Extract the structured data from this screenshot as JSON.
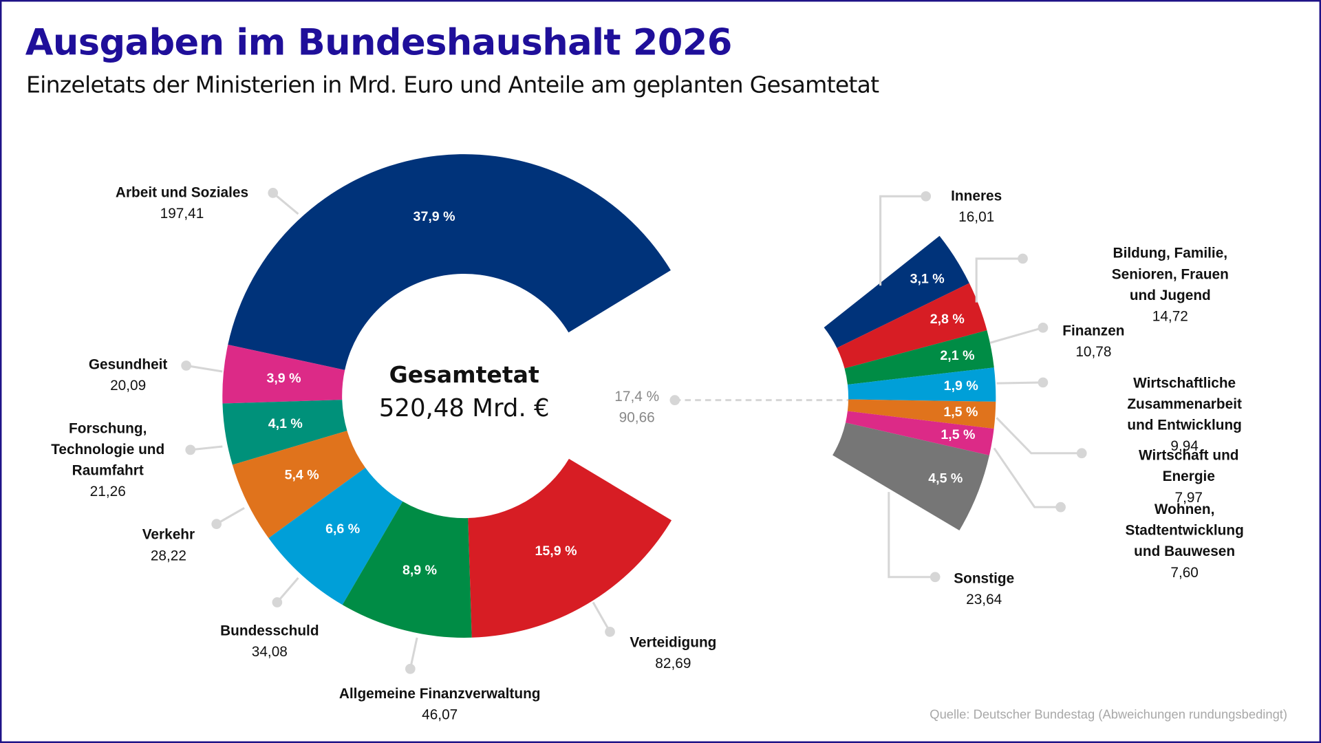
{
  "title": "Ausgaben im Bundeshaushalt 2026",
  "subtitle": "Einzeletats der Ministerien in Mrd. Euro und Anteile am geplanten Gesamtetat",
  "source": "Quelle: Deutscher Bundestag (Abweichungen rundungsbedingt)",
  "chart_data": {
    "type": "pie",
    "style": "donut with bar-of-pie breakout",
    "unit": "Mrd. Euro",
    "center": {
      "label": "Gesamtetat",
      "value": "520,48 Mrd. €"
    },
    "main": {
      "slices": [
        {
          "label": "Arbeit und Soziales",
          "value": "197,41",
          "pct_label": "37,9 %",
          "percent": 37.9,
          "color": "#00337a"
        },
        {
          "label": "Gesundheit",
          "value": "20,09",
          "pct_label": "3,9 %",
          "percent": 3.9,
          "color": "#dc2a87"
        },
        {
          "label": "Forschung,\nTechnologie und\nRaumfahrt",
          "value": "21,26",
          "pct_label": "4,1 %",
          "percent": 4.1,
          "color": "#00917a"
        },
        {
          "label": "Verkehr",
          "value": "28,22",
          "pct_label": "5,4 %",
          "percent": 5.4,
          "color": "#e0731c"
        },
        {
          "label": "Bundesschuld",
          "value": "34,08",
          "pct_label": "6,6 %",
          "percent": 6.6,
          "color": "#009fd8"
        },
        {
          "label": "Allgemeine Finanzverwaltung",
          "value": "46,07",
          "pct_label": "8,9 %",
          "percent": 8.9,
          "color": "#008c45"
        },
        {
          "label": "Verteidigung",
          "value": "82,69",
          "pct_label": "15,9 %",
          "percent": 15.9,
          "color": "#d71d24"
        }
      ],
      "other": {
        "value": "90,66",
        "pct_label": "17,4 %",
        "percent": 17.4
      }
    },
    "breakout": {
      "slices": [
        {
          "label": "Inneres",
          "value": "16,01",
          "pct_label": "3,1 %",
          "percent": 3.1,
          "color": "#00337a"
        },
        {
          "label": "Bildung, Familie, Senioren, Frauen\nund Jugend",
          "value": "14,72",
          "pct_label": "2,8 %",
          "percent": 2.8,
          "color": "#d71d24"
        },
        {
          "label": "Finanzen",
          "value": "10,78",
          "pct_label": "2,1 %",
          "percent": 2.1,
          "color": "#008c45"
        },
        {
          "label": "Wirtschaftliche Zusammenarbeit\nund Entwicklung",
          "value": "9,94",
          "pct_label": "1,9 %",
          "percent": 1.9,
          "color": "#009fd8"
        },
        {
          "label": "Wirtschaft und Energie",
          "value": "7,97",
          "pct_label": "1,5 %",
          "percent": 1.5,
          "color": "#e0731c"
        },
        {
          "label": "Wohnen, Stadtentwicklung\nund Bauwesen",
          "value": "7,60",
          "pct_label": "1,5 %",
          "percent": 1.5,
          "color": "#dc2a87"
        },
        {
          "label": "Sonstige",
          "value": "23,64",
          "pct_label": "4,5 %",
          "percent": 4.5,
          "color": "#767676"
        }
      ]
    },
    "leader_color": "#d6d6d6"
  }
}
